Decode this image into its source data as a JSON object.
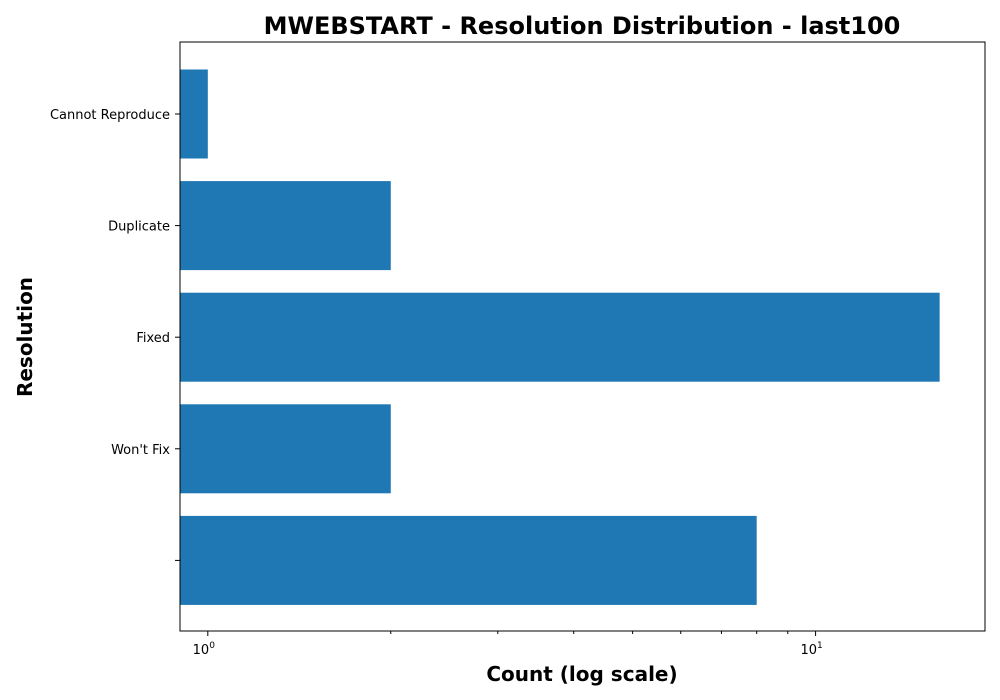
{
  "chart_data": {
    "type": "bar",
    "orientation": "horizontal",
    "title": "MWEBSTART - Resolution Distribution - last100",
    "xlabel": "Count (log scale)",
    "ylabel": "Resolution",
    "x_scale": "log",
    "xlim": [
      0.9,
      19
    ],
    "x_ticks": [
      {
        "value": 1,
        "base": "10",
        "exp": "0"
      },
      {
        "value": 10,
        "base": "10",
        "exp": "1"
      }
    ],
    "categories": [
      "Cannot Reproduce",
      "Duplicate",
      "Fixed",
      "Won't Fix",
      ""
    ],
    "values": [
      1,
      2,
      16,
      2,
      8
    ],
    "bar_color": "#1f77b4",
    "grid": false,
    "legend": "none"
  }
}
